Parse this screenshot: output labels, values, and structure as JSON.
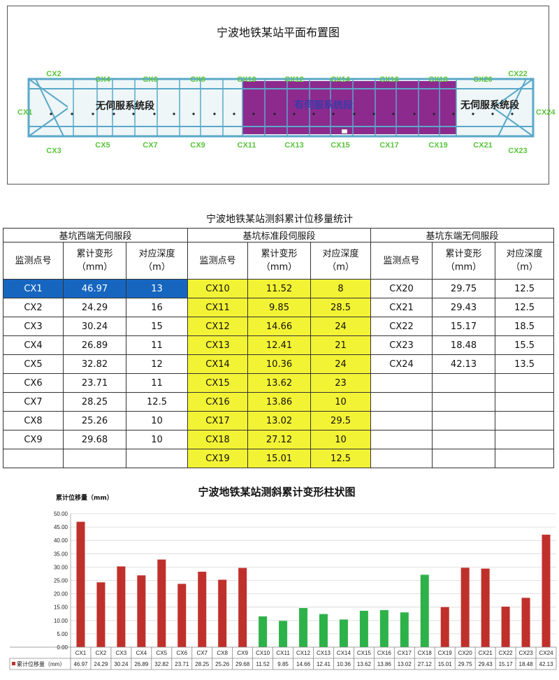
{
  "plan": {
    "title": "宁波地铁某站平面布置图",
    "segments": {
      "west": "无伺服系统段",
      "middle": "有伺服系统段",
      "east": "无伺服系统段"
    },
    "top_points": [
      "CX2",
      "CX4",
      "CX6",
      "CX8",
      "CX10",
      "CX12",
      "CX14",
      "CX16",
      "CX18",
      "CX20",
      "CX22"
    ],
    "bottom_points": [
      "CX3",
      "CX5",
      "CX7",
      "CX9",
      "CX11",
      "CX13",
      "CX15",
      "CX17",
      "CX19",
      "CX21",
      "CX23"
    ],
    "left_point": "CX1",
    "right_point": "CX24",
    "colors": {
      "servo_zone": "#8d2a8e",
      "outline": "#5aa8c8",
      "label_green": "#59c63a"
    }
  },
  "table": {
    "title": "宁波地铁某站测斜累计位移量统计",
    "groups": [
      "基坑西端无伺服段",
      "基坑标准段伺服段",
      "基坑东端无伺服段"
    ],
    "col_headers": {
      "point": "监测点号",
      "deform": "累计变形\n（mm）",
      "depth": "对应深度\n（m）"
    },
    "west": [
      [
        "CX1",
        "46.97",
        "13"
      ],
      [
        "CX2",
        "24.29",
        "16"
      ],
      [
        "CX3",
        "30.24",
        "15"
      ],
      [
        "CX4",
        "26.89",
        "11"
      ],
      [
        "CX5",
        "32.82",
        "12"
      ],
      [
        "CX6",
        "23.71",
        "11"
      ],
      [
        "CX7",
        "28.25",
        "12.5"
      ],
      [
        "CX8",
        "25.26",
        "10"
      ],
      [
        "CX9",
        "29.68",
        "10"
      ],
      [
        "",
        "",
        ""
      ]
    ],
    "middle": [
      [
        "CX10",
        "11.52",
        "8"
      ],
      [
        "CX11",
        "9.85",
        "28.5"
      ],
      [
        "CX12",
        "14.66",
        "24"
      ],
      [
        "CX13",
        "12.41",
        "21"
      ],
      [
        "CX14",
        "10.36",
        "24"
      ],
      [
        "CX15",
        "13.62",
        "23"
      ],
      [
        "CX16",
        "13.86",
        "10"
      ],
      [
        "CX17",
        "13.02",
        "29.5"
      ],
      [
        "CX18",
        "27.12",
        "10"
      ],
      [
        "CX19",
        "15.01",
        "12.5"
      ]
    ],
    "east": [
      [
        "CX20",
        "29.75",
        "12.5"
      ],
      [
        "CX21",
        "29.43",
        "12.5"
      ],
      [
        "CX22",
        "15.17",
        "18.5"
      ],
      [
        "CX23",
        "18.48",
        "15.5"
      ],
      [
        "CX24",
        "42.13",
        "13.5"
      ],
      [
        "",
        "",
        ""
      ],
      [
        "",
        "",
        ""
      ],
      [
        "",
        "",
        ""
      ],
      [
        "",
        "",
        ""
      ],
      [
        "",
        "",
        ""
      ]
    ],
    "highlight_colors": {
      "blue": "#1666c0",
      "yellow": "#f3f335"
    }
  },
  "chart_data": {
    "type": "bar",
    "title": "宁波地铁某站测斜累计变形柱状图",
    "ylabel": "累计位移量（mm）",
    "ylim": [
      0,
      50
    ],
    "yticks": [
      "0.00",
      "5.00",
      "10.00",
      "15.00",
      "20.00",
      "25.00",
      "30.00",
      "35.00",
      "40.00",
      "45.00",
      "50.00"
    ],
    "grid": true,
    "categories": [
      "CX1",
      "CX2",
      "CX3",
      "CX4",
      "CX5",
      "CX6",
      "CX7",
      "CX8",
      "CX9",
      "CX10",
      "CX11",
      "CX12",
      "CX13",
      "CX14",
      "CX15",
      "CX16",
      "CX17",
      "CX18",
      "CX19",
      "CX20",
      "CX21",
      "CX22",
      "CX23",
      "CX24"
    ],
    "series": [
      {
        "name": "累计位移量（mm）",
        "values": [
          46.97,
          24.29,
          30.24,
          26.89,
          32.82,
          23.71,
          28.25,
          25.26,
          29.68,
          11.52,
          9.85,
          14.66,
          12.41,
          10.36,
          13.62,
          13.86,
          13.02,
          27.12,
          15.01,
          29.75,
          29.43,
          15.17,
          18.48,
          42.13
        ],
        "labels": [
          "46.97",
          "24.29",
          "30.24",
          "26.89",
          "32.82",
          "23.71",
          "28.25",
          "25.26",
          "29.68",
          "11.52",
          "9.85",
          "14.66",
          "12.41",
          "10.36",
          "13.62",
          "13.86",
          "13.02",
          "27.12",
          "15.01",
          "29.75",
          "29.43",
          "15.17",
          "18.48",
          "42.13"
        ]
      }
    ],
    "bar_colors": [
      "#c0302b",
      "#c0302b",
      "#c0302b",
      "#c0302b",
      "#c0302b",
      "#c0302b",
      "#c0302b",
      "#c0302b",
      "#c0302b",
      "#2db24a",
      "#2db24a",
      "#2db24a",
      "#2db24a",
      "#2db24a",
      "#2db24a",
      "#2db24a",
      "#2db24a",
      "#2db24a",
      "#c0302b",
      "#c0302b",
      "#c0302b",
      "#c0302b",
      "#c0302b",
      "#c0302b"
    ],
    "data_table": true
  }
}
